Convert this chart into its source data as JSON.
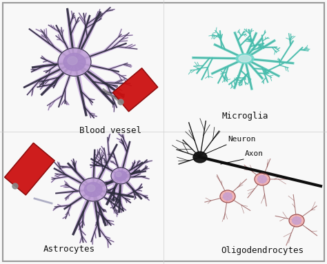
{
  "background_color": "#f8f8f8",
  "border_color": "#999999",
  "labels": {
    "blood_vessel": "Blood vessel",
    "microglia": "Microglia",
    "astrocytes": "Astrocytes",
    "oligodendrocytes": "Oligodendrocytes",
    "neuron": "Neuron",
    "axon": "Axon"
  },
  "colors": {
    "astrocyte_fill": "#c8aade",
    "astrocyte_dark": "#2a2a3a",
    "astrocyte_body": "#c0a0d8",
    "astrocyte_inner": "#a888c8",
    "microglia_fill": "#50c8b8",
    "microglia_dark": "#208878",
    "microglia_body": "#70d8cc",
    "microglia_inner": "#d0e8e8",
    "oligo_body": "#f0a8a8",
    "oligo_nucleus": "#c8a0d0",
    "oligo_outline": "#884444",
    "neuron_dark": "#111111",
    "blood_vessel_red": "#cc1111",
    "blood_vessel_dark": "#881111",
    "label_color": "#111111",
    "divider": "#cccccc"
  },
  "label_fontsize": 9,
  "label_font": "monospace"
}
